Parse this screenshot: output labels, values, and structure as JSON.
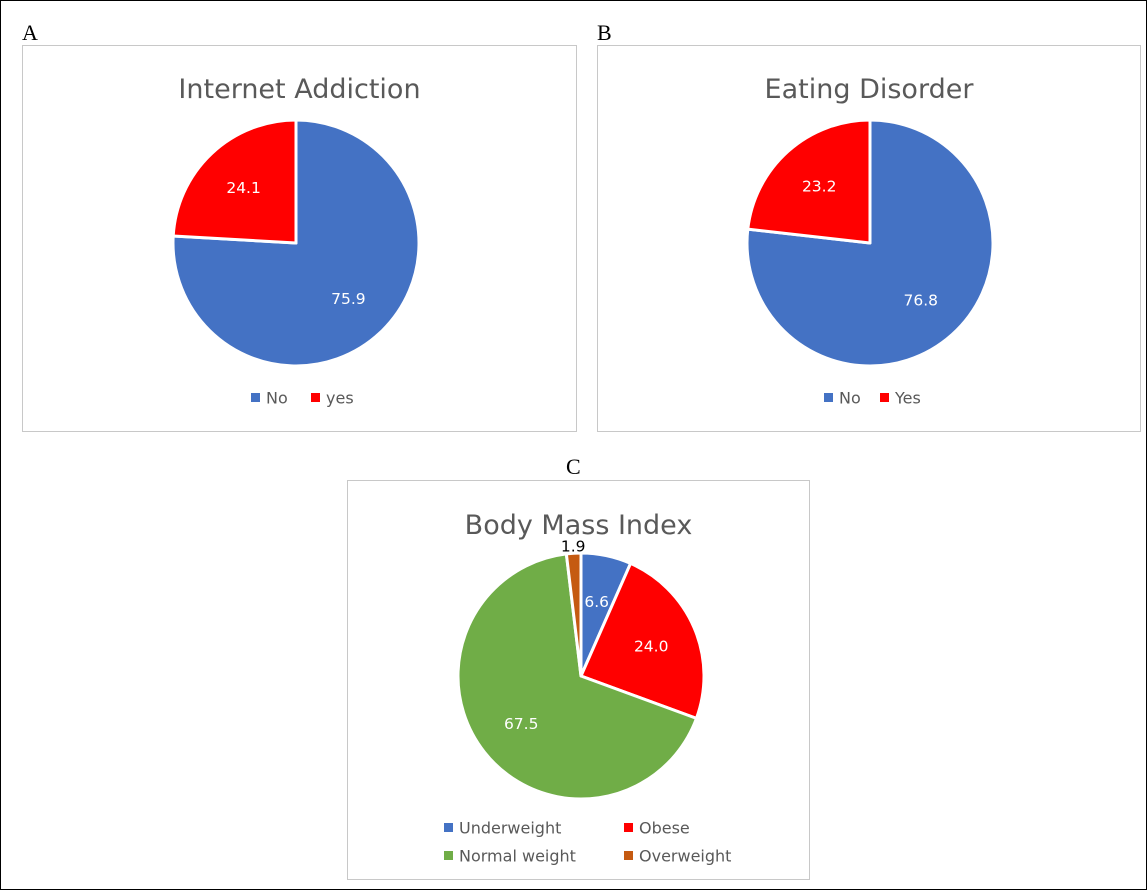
{
  "panels": [
    {
      "letter": "A"
    },
    {
      "letter": "B"
    },
    {
      "letter": "C"
    }
  ],
  "chart_data": [
    {
      "type": "pie",
      "title": "Internet Addiction",
      "categories": [
        "No",
        "yes"
      ],
      "values": [
        75.9,
        24.1
      ],
      "labels": [
        "75.9",
        "24.1"
      ],
      "colors": [
        "#4472C4",
        "#FF0000"
      ],
      "label_colors": [
        "#ffffff",
        "#ffffff"
      ],
      "legend": "bottom"
    },
    {
      "type": "pie",
      "title": "Eating Disorder",
      "categories": [
        "No",
        "Yes"
      ],
      "values": [
        76.8,
        23.2
      ],
      "labels": [
        "76.8",
        "23.2"
      ],
      "colors": [
        "#4472C4",
        "#FF0000"
      ],
      "label_colors": [
        "#ffffff",
        "#ffffff"
      ],
      "legend": "bottom"
    },
    {
      "type": "pie",
      "title": "Body Mass Index",
      "categories": [
        "Underweight",
        "Obese",
        "Normal weight",
        "Overweight"
      ],
      "values": [
        6.6,
        24.0,
        67.5,
        1.9
      ],
      "labels": [
        "6.6",
        "24.0",
        "67.5",
        "1.9"
      ],
      "colors": [
        "#4472C4",
        "#FF0000",
        "#70AD47",
        "#C55A11"
      ],
      "label_colors": [
        "#ffffff",
        "#ffffff",
        "#ffffff",
        "#000000"
      ],
      "legend": "bottom"
    }
  ]
}
